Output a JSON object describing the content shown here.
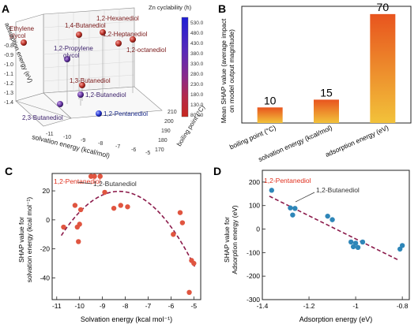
{
  "panels": {
    "A": "A",
    "B": "B",
    "C": "C",
    "D": "D"
  },
  "chart_data": [
    {
      "panel": "A",
      "type": "scatter",
      "projection": "3d",
      "axes": {
        "z_label": "adsorption energy (eV)",
        "x_label": "solvation energy (kcal/mol)",
        "y_label": "boiling point (°C)",
        "z_ticks": [
          "-0.8",
          "-0.9",
          "-1.0",
          "-1.1",
          "-1.2",
          "-1.3",
          "-1.4"
        ],
        "x_ticks": [
          "-11",
          "-10",
          "-9",
          "-8",
          "-7",
          "-6",
          "-5"
        ],
        "y_ticks": [
          "170",
          "180",
          "190",
          "200",
          "210"
        ]
      },
      "colorbar": {
        "title": "Zn cyclability (h)",
        "ticks": [
          "530.0",
          "480.0",
          "430.0",
          "380.0",
          "330.0",
          "280.0",
          "230.0",
          "180.0",
          "130.0",
          "80.00"
        ],
        "colors": [
          "#1f1fd6",
          "#5a2ab8",
          "#8a2a8a",
          "#b42a4a",
          "#c8281e"
        ]
      },
      "points": [
        {
          "label": "1,2-Hexanediol",
          "cyclability": "low"
        },
        {
          "label": "1,4-Butanediol",
          "cyclability": "low"
        },
        {
          "label": "Ethylene glycol",
          "cyclability": "low"
        },
        {
          "label": "1,2-Heptanediol",
          "cyclability": "low"
        },
        {
          "label": "1,2-Propylene glycol",
          "cyclability": "mid"
        },
        {
          "label": "1,2-octanediol",
          "cyclability": "low"
        },
        {
          "label": "1,3-Butanediol",
          "cyclability": "low"
        },
        {
          "label": "1,2-Butanediol",
          "cyclability": "mid"
        },
        {
          "label": "2,3-Butanediol",
          "cyclability": "mid"
        },
        {
          "label": "1,2-Pentanediol",
          "cyclability": "high"
        }
      ]
    },
    {
      "panel": "B",
      "type": "bar",
      "categories": [
        "boiling point (°C)",
        "solvation energy (kcal/mol)",
        "adsorption energy (eV)"
      ],
      "values": [
        10,
        15,
        70
      ],
      "value_labels": [
        "10",
        "15",
        "70"
      ],
      "ylabel": "Mean SHAP value (average impact on model output magnitude)",
      "ylabel_lines": [
        "Mean SHAP value (average impact",
        "on model output magnitude)"
      ],
      "ylim": [
        0,
        75
      ],
      "bar_gradient": [
        "#f2c23a",
        "#e8541e"
      ]
    },
    {
      "panel": "C",
      "type": "scatter",
      "xlabel": "Solvation energy (kcal mol⁻¹)",
      "ylabel": "SHAP value for solvation energy (kcal mol⁻¹)",
      "ylabel_lines": [
        "SHAP value for",
        "solvation energy (kcal mol⁻¹)"
      ],
      "xlim": [
        -11.2,
        -4.7
      ],
      "ylim": [
        -55,
        32
      ],
      "xticks": [
        -11,
        -10,
        -9,
        -8,
        -7,
        -6,
        -5
      ],
      "yticks": [
        -40,
        -20,
        0,
        20
      ],
      "x": [
        -10.7,
        -10.2,
        -10.1,
        -10.05,
        -10.0,
        -9.95,
        -9.5,
        -9.35,
        -9.1,
        -8.9,
        -8.5,
        -8.2,
        -7.9,
        -5.9,
        -5.6,
        -5.5,
        -5.2,
        -5.1,
        -5.0
      ],
      "y": [
        -5,
        10,
        -5,
        -15,
        -3,
        7,
        30,
        30,
        30,
        19,
        8,
        10,
        9,
        -10,
        5,
        -2,
        -50,
        -28,
        -30
      ],
      "point_color": "#e05540",
      "fit": {
        "type": "quadratic",
        "x_range": [
          -10.8,
          -4.95
        ],
        "color": "#8b1a4a"
      },
      "annotations": [
        {
          "text": "1,2-Pentanediol",
          "color": "#e0301e"
        },
        {
          "text": "1,2-Butanediol",
          "color": "#333333"
        }
      ]
    },
    {
      "panel": "D",
      "type": "scatter",
      "xlabel": "Adsorption energy (eV)",
      "ylabel": "SHAP value for Adsorption energy (eV)",
      "ylabel_lines": [
        "SHAP value for",
        "Adsorption energy (eV)"
      ],
      "xlim": [
        -1.4,
        -0.77
      ],
      "ylim": [
        -300,
        250
      ],
      "xticks": [
        -1.4,
        -1.2,
        -1.0,
        -0.8
      ],
      "yticks": [
        -300,
        -200,
        -100,
        0,
        100,
        200
      ],
      "x": [
        -1.36,
        -1.28,
        -1.27,
        -1.26,
        -1.12,
        -1.1,
        -1.02,
        -1.01,
        -1.0,
        -0.99,
        -0.97,
        -0.81,
        -0.8
      ],
      "y": [
        165,
        90,
        60,
        88,
        55,
        40,
        -55,
        -75,
        -60,
        -78,
        -55,
        -85,
        -70
      ],
      "point_color": "#2e86b8",
      "fit": {
        "type": "linear",
        "x_range": [
          -1.37,
          -0.82
        ],
        "y_range": [
          140,
          -130
        ],
        "color": "#8b1a4a"
      },
      "annotations": [
        {
          "text": "1,2-Pentanediol",
          "color": "#e0301e"
        },
        {
          "text": "1,2-Butanediol",
          "color": "#333333"
        }
      ]
    }
  ]
}
